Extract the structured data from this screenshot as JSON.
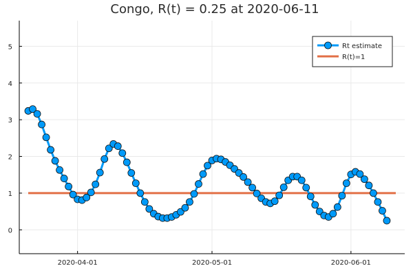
{
  "chart_data": {
    "type": "line",
    "title": "Congo, R(t) = 0.25 at 2020-06-11",
    "xlabel": "",
    "ylabel": "",
    "x_start_date": "2020-03-21",
    "x_end_date": "2020-06-11",
    "xlim": [
      "2020-03-19",
      "2020-06-13"
    ],
    "ylim": [
      -0.65,
      5.7
    ],
    "x_ticks": [
      "2020-04-01",
      "2020-05-01",
      "2020-06-01"
    ],
    "y_ticks": [
      0,
      1,
      2,
      3,
      4,
      5
    ],
    "grid": true,
    "legend": {
      "placement": "top-right"
    },
    "series": [
      {
        "name": "Rt estimate",
        "color": "#009AF9",
        "marker": "circle",
        "values": [
          3.24,
          3.29,
          3.16,
          2.87,
          2.52,
          2.18,
          1.88,
          1.63,
          1.4,
          1.18,
          0.96,
          0.83,
          0.81,
          0.88,
          1.02,
          1.24,
          1.56,
          1.93,
          2.22,
          2.34,
          2.28,
          2.09,
          1.84,
          1.55,
          1.27,
          1.0,
          0.76,
          0.57,
          0.44,
          0.36,
          0.32,
          0.32,
          0.35,
          0.41,
          0.49,
          0.6,
          0.76,
          0.98,
          1.25,
          1.52,
          1.75,
          1.89,
          1.94,
          1.92,
          1.85,
          1.76,
          1.66,
          1.55,
          1.44,
          1.3,
          1.15,
          0.99,
          0.86,
          0.76,
          0.72,
          0.78,
          0.94,
          1.16,
          1.35,
          1.45,
          1.45,
          1.35,
          1.15,
          0.91,
          0.68,
          0.5,
          0.39,
          0.35,
          0.44,
          0.62,
          0.93,
          1.27,
          1.51,
          1.58,
          1.52,
          1.38,
          1.21,
          1.0,
          0.76,
          0.52,
          0.25
        ]
      },
      {
        "name": "R(t)=1",
        "color": "#E26F46",
        "values": [
          1.0,
          1.0
        ]
      }
    ]
  }
}
